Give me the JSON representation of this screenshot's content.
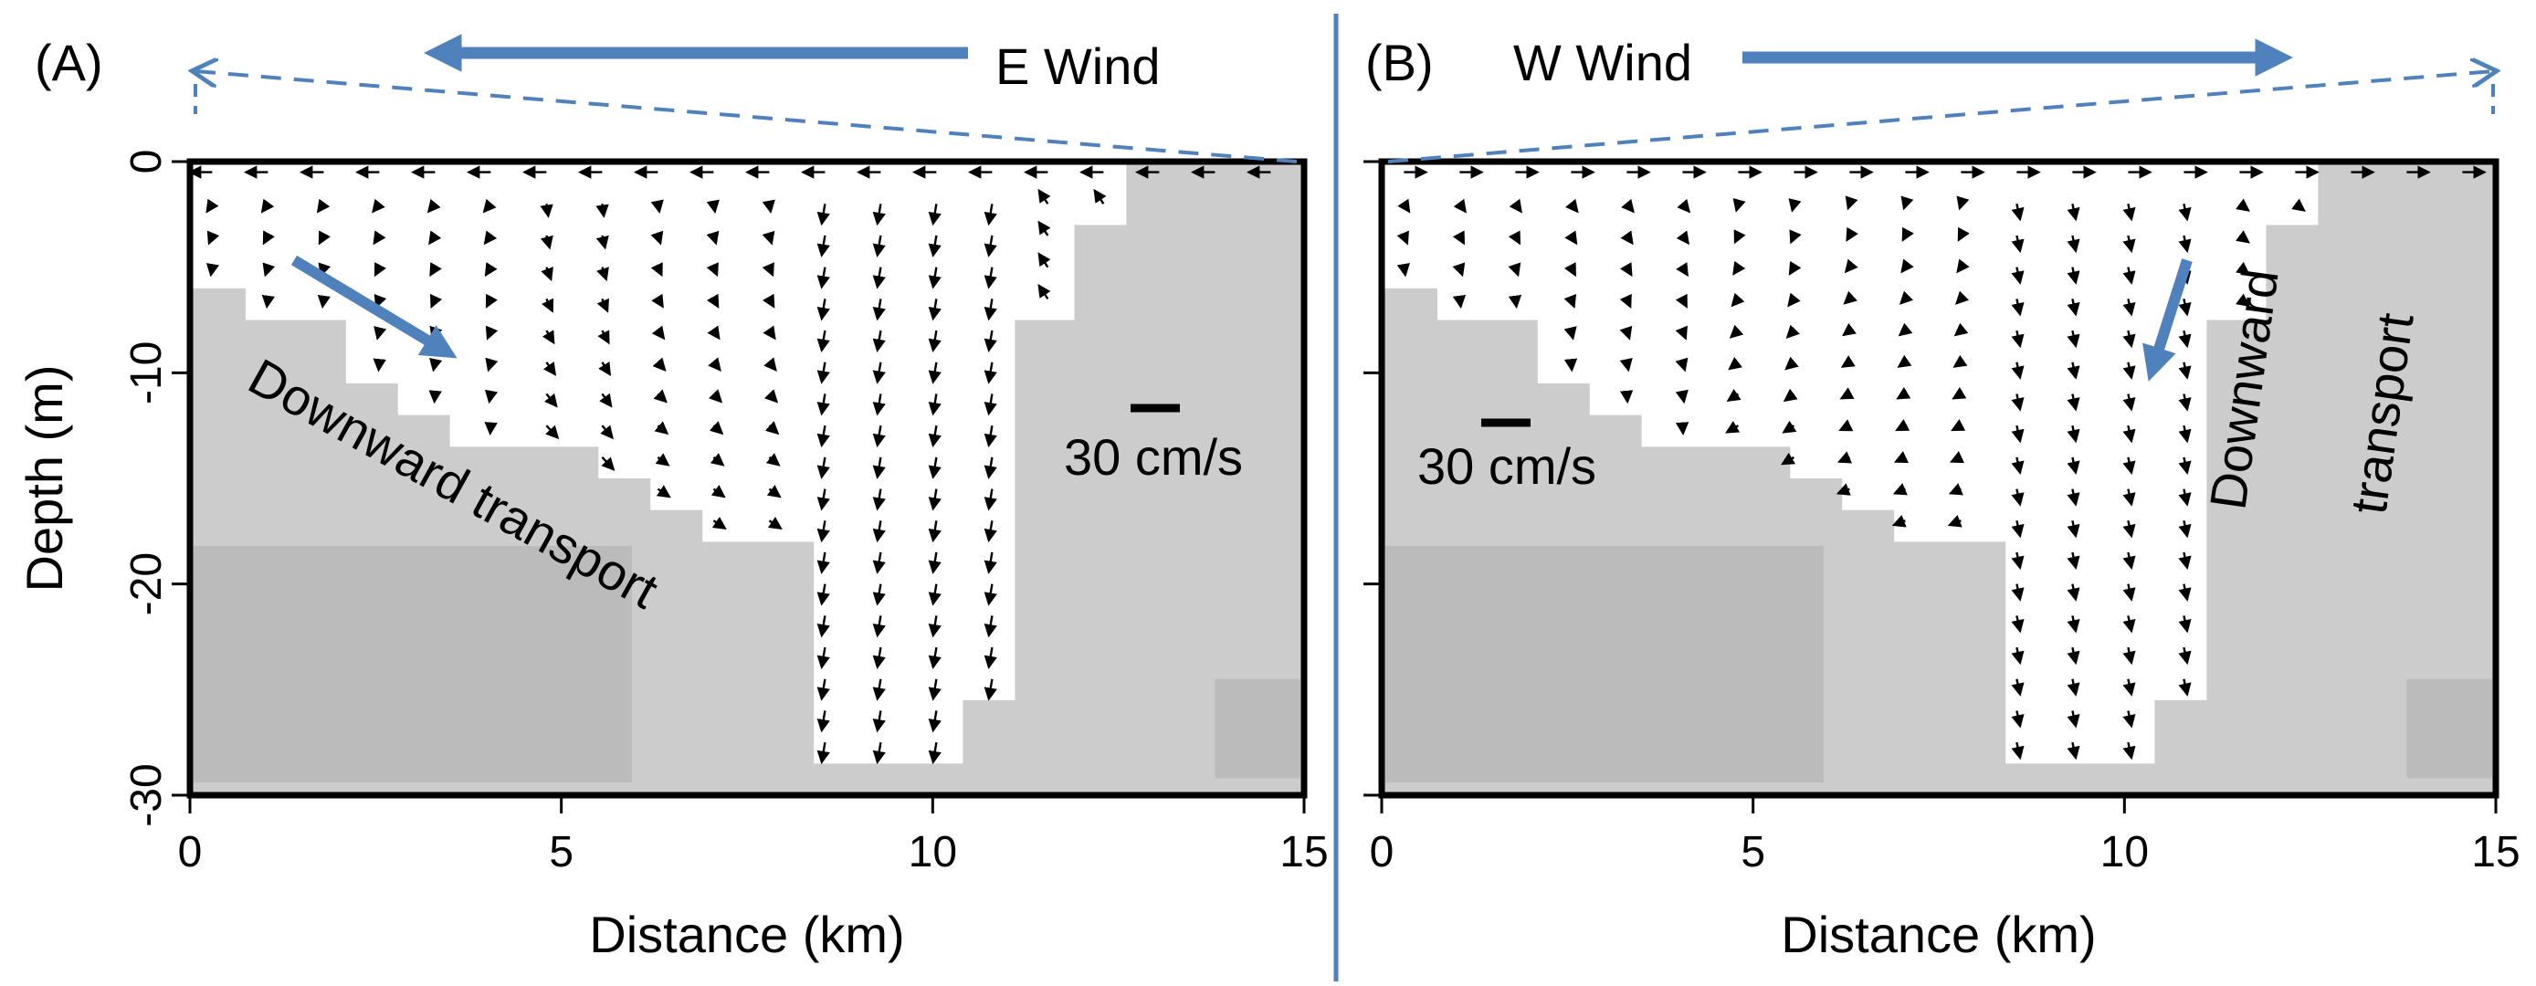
{
  "axes": {
    "xlabel": "Distance (km)",
    "ylabel": "Depth (m)",
    "x_ticks": [
      0,
      5,
      10,
      15
    ],
    "x_tick_labels": [
      "0",
      "5",
      "10",
      "15"
    ],
    "y_ticks": [
      0,
      -10,
      -20,
      -30
    ],
    "y_tick_labels": [
      "0",
      "-10",
      "-20",
      "-30"
    ],
    "x_range_km": [
      0,
      15
    ],
    "y_range_m": [
      -30,
      0
    ]
  },
  "colors": {
    "annotation": "#4f81bd",
    "land": "#cccccc",
    "land_dark": "#bbbbbb",
    "vector": "#000000"
  },
  "panels": [
    {
      "label": "(A)",
      "wind_label": "E Wind",
      "wind_direction": "west",
      "transport_label": "Downward transport",
      "scale_label": "30 cm/s",
      "bottom_depth_m": [
        [
          0,
          -6
        ],
        [
          0.75,
          -7.5
        ],
        [
          2.1,
          -10.5
        ],
        [
          2.8,
          -12
        ],
        [
          3.5,
          -13.5
        ],
        [
          5.5,
          -15
        ],
        [
          6.2,
          -16.5
        ],
        [
          6.9,
          -18
        ],
        [
          8.4,
          -28.5
        ],
        [
          10.4,
          -25.5
        ],
        [
          11.1,
          -7.5
        ],
        [
          11.9,
          -3
        ],
        [
          12.6,
          -1.5
        ]
      ],
      "vector_pattern": "clockwise"
    },
    {
      "label": "(B)",
      "wind_label": "W Wind",
      "wind_direction": "east",
      "transport_label_line1": "Downward",
      "transport_label_line2": "transport",
      "scale_label": "30 cm/s",
      "bottom_depth_m": [
        [
          0,
          -6
        ],
        [
          0.75,
          -7.5
        ],
        [
          2.1,
          -10.5
        ],
        [
          2.8,
          -12
        ],
        [
          3.5,
          -13.5
        ],
        [
          5.5,
          -15
        ],
        [
          6.2,
          -16.5
        ],
        [
          6.9,
          -18
        ],
        [
          8.4,
          -28.5
        ],
        [
          10.4,
          -25.5
        ],
        [
          11.1,
          -7.5
        ],
        [
          11.9,
          -3
        ],
        [
          12.6,
          -1.5
        ]
      ],
      "vector_pattern": "counterclockwise"
    }
  ]
}
